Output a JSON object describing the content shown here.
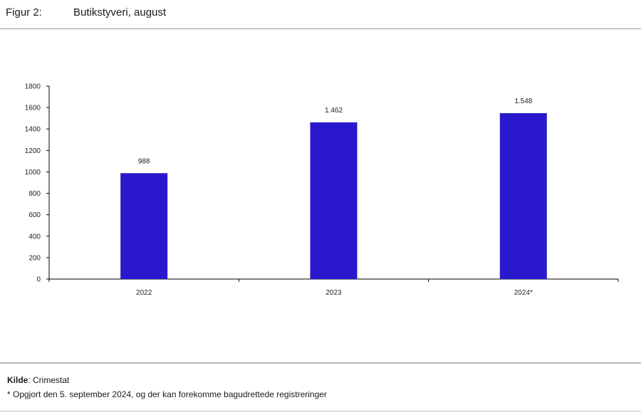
{
  "header": {
    "figure_label": "Figur 2:",
    "figure_title": "Butikstyveri, august"
  },
  "chart_data": {
    "type": "bar",
    "categories": [
      "2022",
      "2023",
      "2024*"
    ],
    "values": [
      988,
      1462,
      1548
    ],
    "data_labels": [
      "988",
      "1.462",
      "1.548"
    ],
    "ylim": [
      0,
      1800
    ],
    "yticks": [
      0,
      200,
      400,
      600,
      800,
      1000,
      1200,
      1400,
      1600,
      1800
    ],
    "bar_color": "#2a18cc",
    "grid": false,
    "legend": "none"
  },
  "footer": {
    "source_label": "Kilde",
    "source_value": ": Crimestat",
    "note": "* Opgjort den 5. september 2024, og der kan forekomme bagudrettede registreringer"
  }
}
